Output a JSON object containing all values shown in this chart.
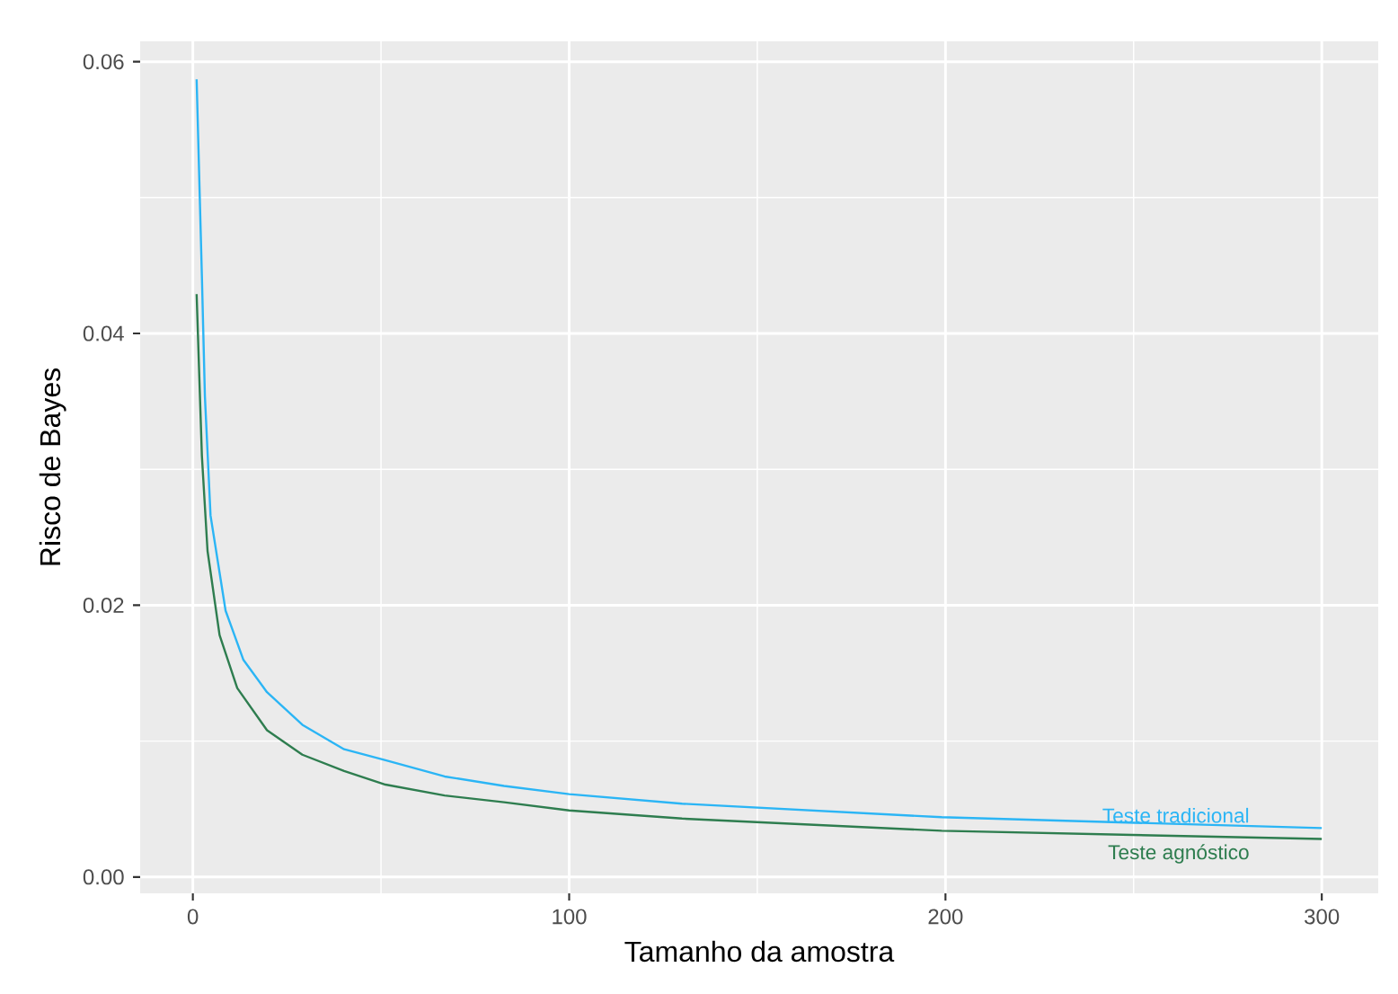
{
  "chart_data": {
    "type": "line",
    "xlabel": "Tamanho da amostra",
    "ylabel": "Risco de Bayes",
    "xlim": [
      -14,
      315
    ],
    "ylim": [
      -0.0012,
      0.0615
    ],
    "xticks": [
      0,
      100,
      200,
      300
    ],
    "yticks": [
      {
        "value": 0,
        "label": "0.00"
      },
      {
        "value": 0.02,
        "label": "0.02"
      },
      {
        "value": 0.04,
        "label": "0.04"
      },
      {
        "value": 0.06,
        "label": "0.06"
      }
    ],
    "grid": true,
    "marker": "none",
    "line_style": "solid",
    "series": [
      {
        "name": "Teste tradicional",
        "color": "#2bb5f5",
        "x": [
          1,
          2.4,
          3.2,
          4.7,
          8.7,
          13.4,
          19.7,
          29.1,
          40.2,
          51.2,
          66.9,
          82.7,
          100,
          130,
          199,
          300
        ],
        "values": [
          0.0587,
          0.0442,
          0.0354,
          0.0266,
          0.0196,
          0.016,
          0.0136,
          0.0112,
          0.0094,
          0.0086,
          0.0074,
          0.0067,
          0.0061,
          0.0054,
          0.0044,
          0.0036
        ]
      },
      {
        "name": "Teste agnóstico",
        "color": "#2e7d4f",
        "x": [
          1,
          2.4,
          3.9,
          7.1,
          11.8,
          19.7,
          29.1,
          40.2,
          51.2,
          66.9,
          82.7,
          100,
          130,
          199,
          300
        ],
        "values": [
          0.0429,
          0.031,
          0.024,
          0.0178,
          0.0139,
          0.0108,
          0.009,
          0.0078,
          0.0068,
          0.006,
          0.0055,
          0.0049,
          0.0043,
          0.0034,
          0.0028
        ]
      }
    ]
  }
}
